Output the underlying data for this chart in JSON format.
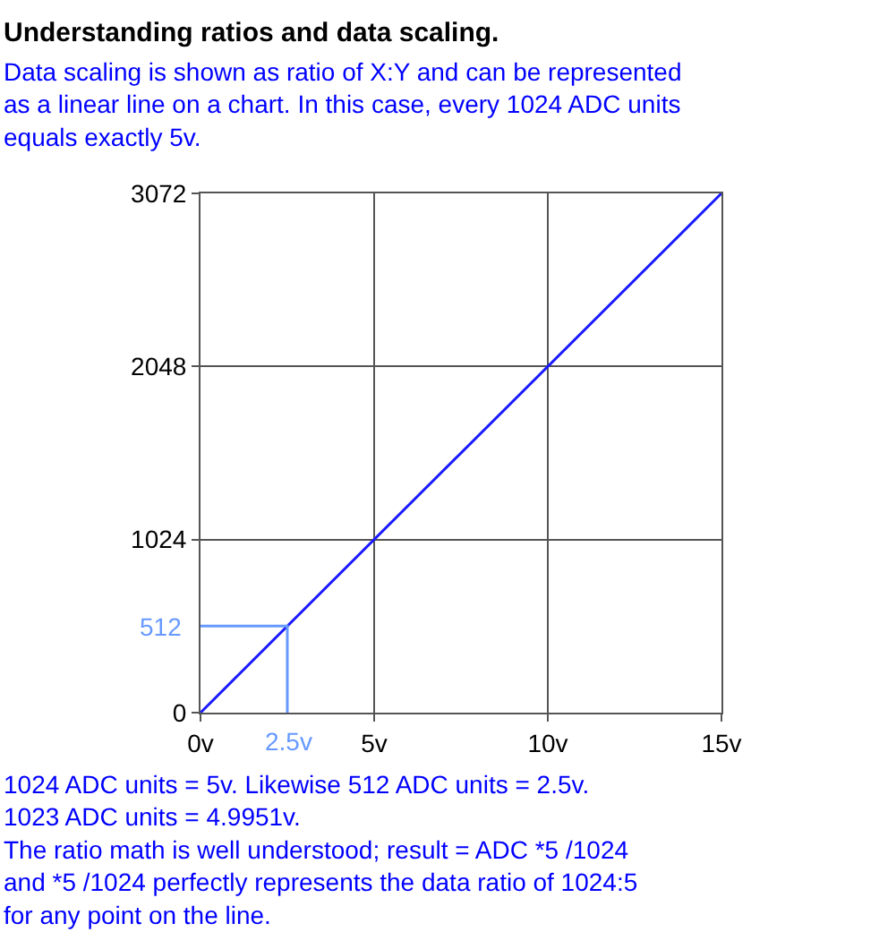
{
  "chart_data": {
    "type": "line",
    "title": "Understanding ratios and data scaling.",
    "subtitle": "Data scaling is shown as ratio of X:Y and can be represented\nas a linear line on a chart. In this case, every 1024 ADC units\nequals exactly 5v.",
    "series": [
      {
        "x": [
          0,
          15
        ],
        "values": [
          0,
          3072
        ],
        "color": "#1a1aff"
      },
      {
        "x": [
          0,
          2.5,
          2.5
        ],
        "values": [
          512,
          512,
          0
        ],
        "color": "#6699ff"
      }
    ],
    "xlim": [
      0,
      15
    ],
    "ylim": [
      0,
      3072
    ],
    "xticks": [
      {
        "value": 0,
        "label": "0v"
      },
      {
        "value": 5,
        "label": "5v"
      },
      {
        "value": 10,
        "label": "10v"
      },
      {
        "value": 15,
        "label": "15v"
      }
    ],
    "yticks": [
      0,
      1024,
      2048,
      3072
    ],
    "grid": true,
    "legend": false,
    "marker": "none",
    "line_style": "solid",
    "annotations": [
      {
        "text": "2.5v",
        "x": 2.5,
        "y": 0
      },
      {
        "text": "512",
        "x": 0,
        "y": 512
      },
      "1024 ADC units = 5v. Likewise 512 ADC units = 2.5v.\n1023 ADC units = 4.9951v.\nThe ratio math is well understood; result = ADC *5 /1024\nand *5 /1024 perfectly represents the data ratio of 1024:5\nfor any point on the line."
    ]
  }
}
